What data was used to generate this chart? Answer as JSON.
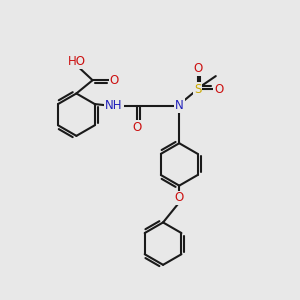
{
  "background_color": "#e8e8e8",
  "atom_colors": {
    "C": "#1a1a1a",
    "H": "#5a9a9a",
    "N": "#2020bb",
    "O": "#cc1111",
    "S": "#ccaa00"
  },
  "bond_color": "#1a1a1a",
  "bond_width": 1.5,
  "font_size": 8.5,
  "fig_size": [
    3.0,
    3.0
  ],
  "dpi": 100
}
